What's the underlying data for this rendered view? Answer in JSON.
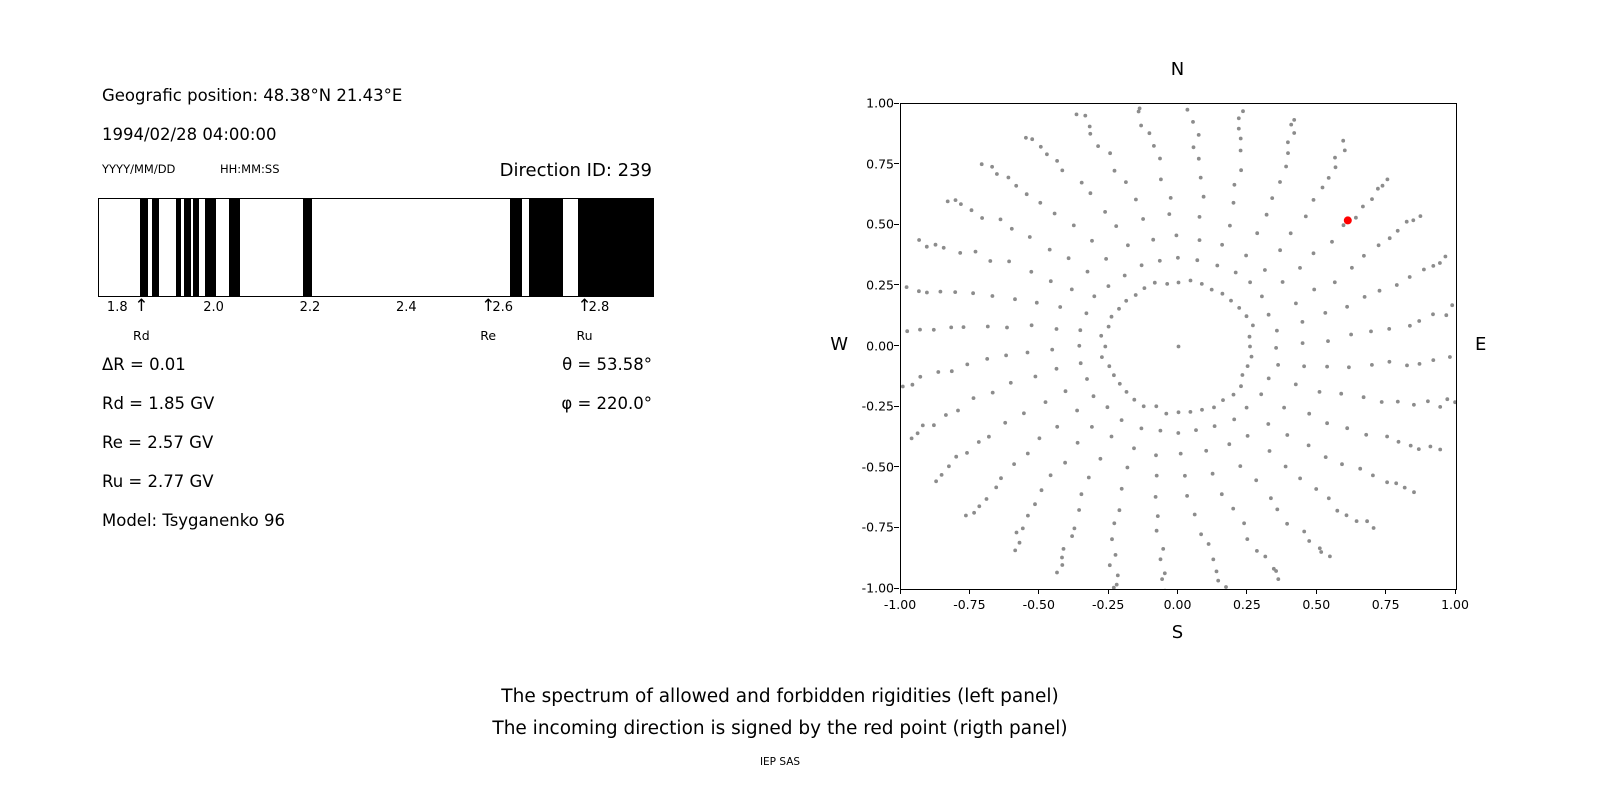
{
  "header": {
    "position": "Geografic position: 48.38°N 21.43°E",
    "datetime": "1994/02/28 04:00:00",
    "date_format": "YYYY/MM/DD",
    "time_format": "HH:MM:SS",
    "direction_id": "Direction ID: 239"
  },
  "info": {
    "delta_r": "ΔR = 0.01",
    "theta": "θ = 53.58°",
    "rd": "Rd = 1.85 GV",
    "phi": "φ = 220.0°",
    "re": "Re = 2.57 GV",
    "ru": "Ru = 2.77 GV",
    "model": "Model: Tsyganenko 96"
  },
  "caption": {
    "line1": "The spectrum of allowed and forbidden rigidities (left panel)",
    "line2": "The incoming direction is signed by the red point (rigth panel)",
    "credit": "IEP SAS"
  },
  "chart_data": [
    {
      "type": "bar",
      "x_range": [
        1.76,
        2.91
      ],
      "bar_color": "#000000",
      "x_ticks": [
        {
          "value": 1.8,
          "label": "1.8"
        },
        {
          "value": 2.0,
          "label": "2.0"
        },
        {
          "value": 2.2,
          "label": "2.2"
        },
        {
          "value": 2.4,
          "label": "2.4"
        },
        {
          "value": 2.6,
          "label": "2.6"
        },
        {
          "value": 2.8,
          "label": "2.8"
        }
      ],
      "black_bands": [
        [
          1.845,
          1.862
        ],
        [
          1.871,
          1.885
        ],
        [
          1.92,
          1.931
        ],
        [
          1.937,
          1.95
        ],
        [
          1.956,
          1.967
        ],
        [
          1.981,
          2.002
        ],
        [
          2.029,
          2.052
        ],
        [
          2.183,
          2.202
        ],
        [
          2.614,
          2.638
        ],
        [
          2.652,
          2.723
        ],
        [
          2.754,
          2.91
        ]
      ],
      "markers": [
        {
          "label": "Rd",
          "value": 1.85
        },
        {
          "label": "Re",
          "value": 2.57
        },
        {
          "label": "Ru",
          "value": 2.77
        }
      ]
    },
    {
      "type": "scatter",
      "xlim": [
        -1,
        1
      ],
      "ylim": [
        -1,
        1
      ],
      "compass": {
        "top": "N",
        "bottom": "S",
        "left": "W",
        "right": "E"
      },
      "x_ticks": [
        {
          "value": -1.0,
          "label": "-1.00"
        },
        {
          "value": -0.75,
          "label": "-0.75"
        },
        {
          "value": -0.5,
          "label": "-0.50"
        },
        {
          "value": -0.25,
          "label": "-0.25"
        },
        {
          "value": 0.0,
          "label": "0.00"
        },
        {
          "value": 0.25,
          "label": "0.25"
        },
        {
          "value": 0.5,
          "label": "0.50"
        },
        {
          "value": 0.75,
          "label": "0.75"
        },
        {
          "value": 1.0,
          "label": "1.00"
        }
      ],
      "y_ticks": [
        {
          "value": 1.0,
          "label": "1.00"
        },
        {
          "value": 0.75,
          "label": "0.75"
        },
        {
          "value": 0.5,
          "label": "0.50"
        },
        {
          "value": 0.25,
          "label": "0.25"
        },
        {
          "value": 0.0,
          "label": "0.00"
        },
        {
          "value": -0.25,
          "label": "-0.25"
        },
        {
          "value": -0.5,
          "label": "-0.50"
        },
        {
          "value": -0.75,
          "label": "-0.75"
        },
        {
          "value": -1.0,
          "label": "-1.00"
        }
      ],
      "red_point": {
        "x": 0.61,
        "y": 0.52,
        "color": "#ff0000"
      },
      "gray_dots": {
        "color": "#8c8c8c",
        "seed": 7,
        "center_dot": true,
        "inner_ring_radius": 0.27,
        "inner_ring_points": 40,
        "n_spokes": 32,
        "spoke_radii": [
          0.36,
          0.45,
          0.54,
          0.62,
          0.7,
          0.77,
          0.83,
          0.88,
          0.93,
          0.97,
          1.0,
          1.03
        ],
        "curvature_deg": 14
      }
    }
  ]
}
